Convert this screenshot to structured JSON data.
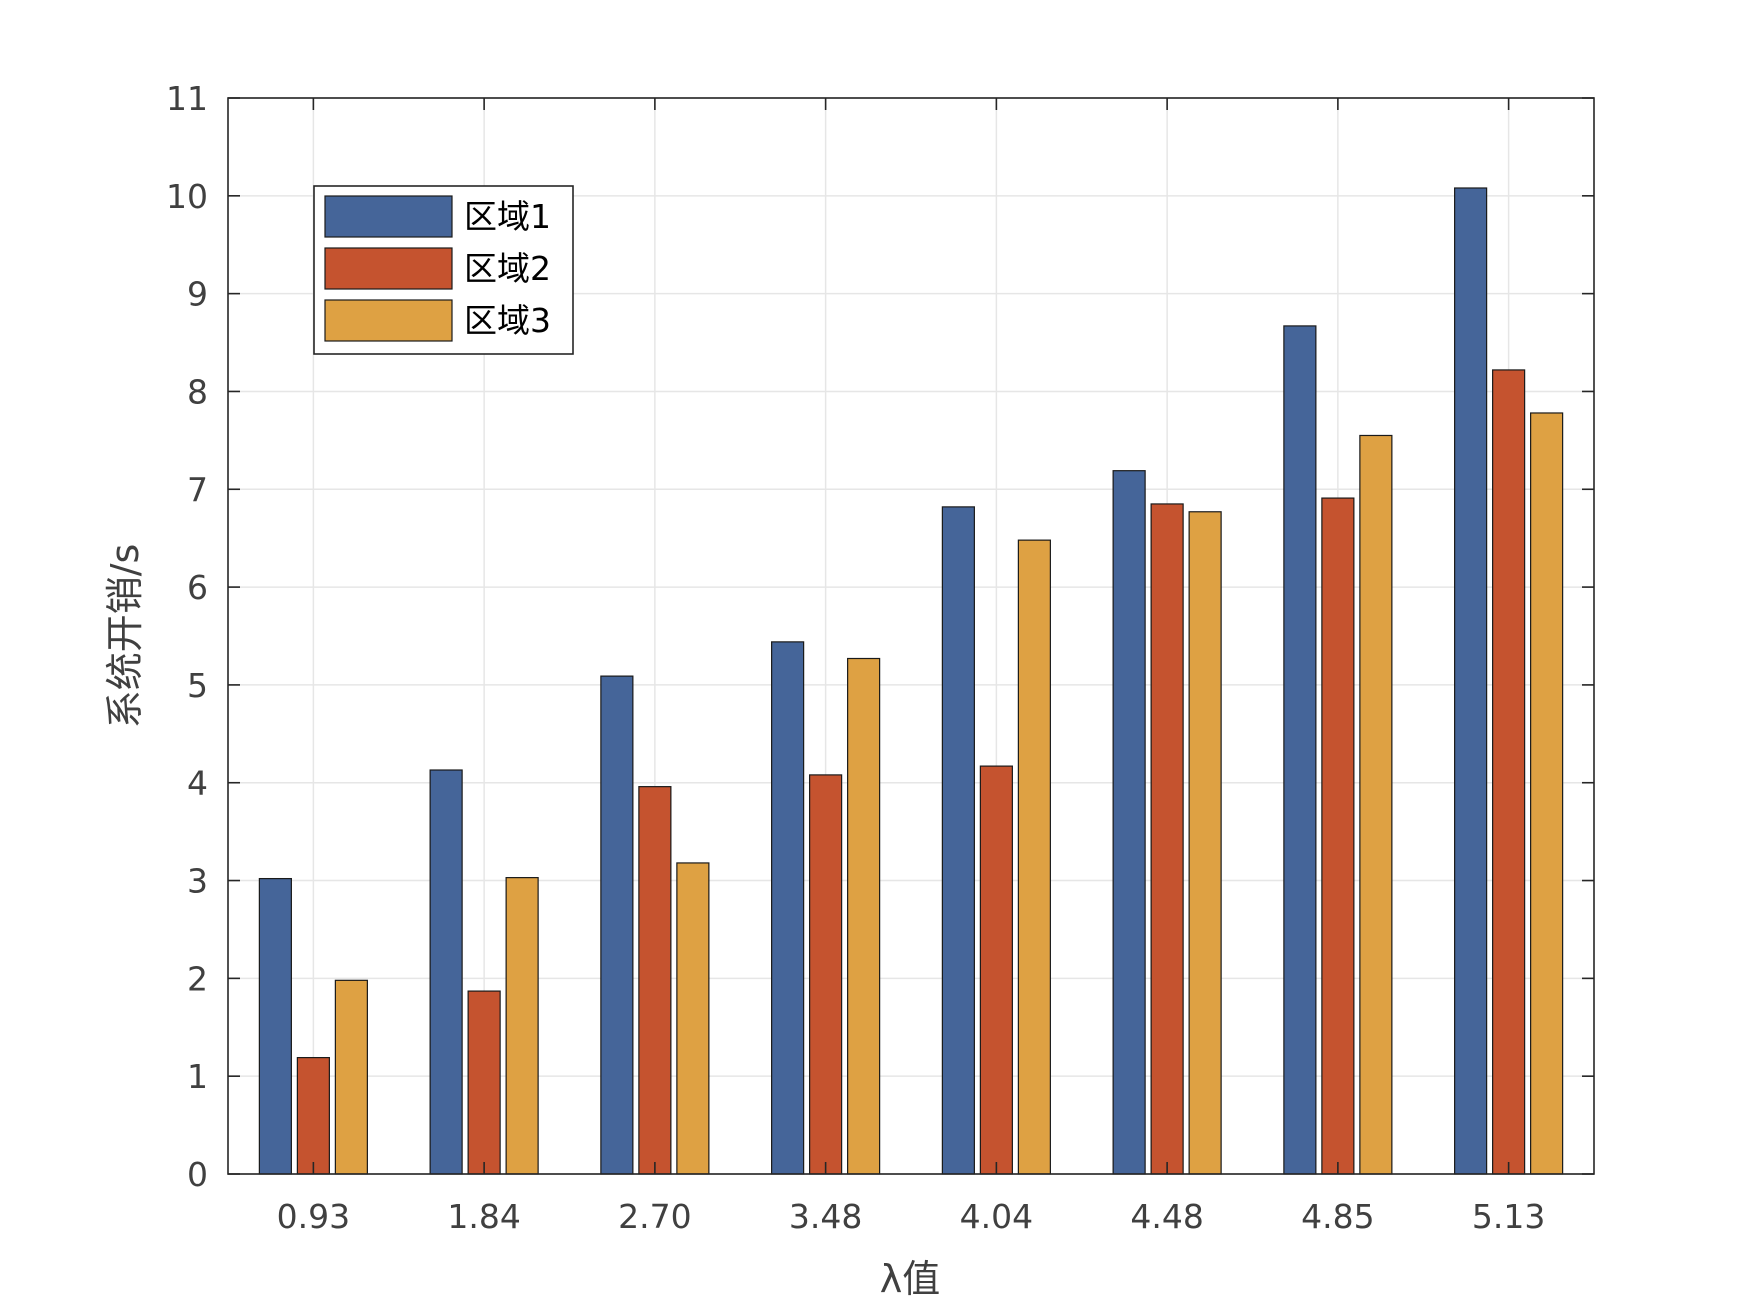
{
  "chart_data": {
    "type": "bar",
    "categories": [
      "0.93",
      "1.84",
      "2.70",
      "3.48",
      "4.04",
      "4.48",
      "4.85",
      "5.13"
    ],
    "series": [
      {
        "name": "区域1",
        "color": "#456599",
        "values": [
          3.02,
          4.13,
          5.09,
          5.44,
          6.82,
          7.19,
          8.67,
          10.08
        ]
      },
      {
        "name": "区域2",
        "color": "#c5532f",
        "values": [
          1.19,
          1.87,
          3.96,
          4.08,
          4.17,
          6.85,
          6.91,
          8.22
        ]
      },
      {
        "name": "区域3",
        "color": "#dea143",
        "values": [
          1.98,
          3.03,
          3.18,
          5.27,
          6.48,
          6.77,
          7.55,
          7.78
        ]
      }
    ],
    "title": "",
    "xlabel": "λ值",
    "ylabel": "系统开销/s",
    "ylim": [
      0,
      11
    ],
    "yticks": [
      0,
      1,
      2,
      3,
      4,
      5,
      6,
      7,
      8,
      9,
      10,
      11
    ],
    "grid": true,
    "legend_position": "top-left"
  }
}
